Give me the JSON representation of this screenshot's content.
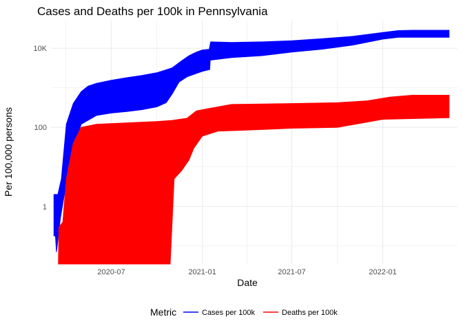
{
  "chart_data": {
    "type": "line",
    "title": "Cases and Deaths per 100k in Pennsylvania",
    "xlabel": "Date",
    "ylabel": "Per 100,000 persons",
    "x_scale": "date",
    "y_scale": "log10",
    "xlim": [
      "2020-03-01",
      "2022-06-01"
    ],
    "ylim": [
      0.035,
      50000
    ],
    "x_ticks": [
      {
        "date": "2020-07-01",
        "label": "2020-07"
      },
      {
        "date": "2021-01-01",
        "label": "2021-01"
      },
      {
        "date": "2021-07-01",
        "label": "2021-07"
      },
      {
        "date": "2022-01-01",
        "label": "2022-01"
      }
    ],
    "y_ticks": [
      {
        "value": 1,
        "label": "1"
      },
      {
        "value": 100,
        "label": "100"
      },
      {
        "value": 10000,
        "label": "10K"
      }
    ],
    "grid": true,
    "legend": {
      "title": "Metric",
      "position": "bottom"
    },
    "series": [
      {
        "name": "Cases per 100k",
        "color": "#0000ff",
        "upper": [
          {
            "x": "2020-03-07",
            "y": 2
          },
          {
            "x": "2020-03-15",
            "y": 2
          },
          {
            "x": "2020-03-22",
            "y": 5
          },
          {
            "x": "2020-04-01",
            "y": 120
          },
          {
            "x": "2020-04-15",
            "y": 400
          },
          {
            "x": "2020-05-01",
            "y": 800
          },
          {
            "x": "2020-05-15",
            "y": 1100
          },
          {
            "x": "2020-06-01",
            "y": 1300
          },
          {
            "x": "2020-07-01",
            "y": 1550
          },
          {
            "x": "2020-08-01",
            "y": 1800
          },
          {
            "x": "2020-09-01",
            "y": 2050
          },
          {
            "x": "2020-10-01",
            "y": 2400
          },
          {
            "x": "2020-11-01",
            "y": 3200
          },
          {
            "x": "2020-11-20",
            "y": 4800
          },
          {
            "x": "2020-12-05",
            "y": 6500
          },
          {
            "x": "2020-12-20",
            "y": 8000
          },
          {
            "x": "2021-01-01",
            "y": 9000
          },
          {
            "x": "2021-01-15",
            "y": 9400
          },
          {
            "x": "2021-01-18",
            "y": 14500
          },
          {
            "x": "2021-03-01",
            "y": 14000
          },
          {
            "x": "2021-05-01",
            "y": 14500
          },
          {
            "x": "2021-07-01",
            "y": 15500
          },
          {
            "x": "2021-09-01",
            "y": 17500
          },
          {
            "x": "2021-11-01",
            "y": 20000
          },
          {
            "x": "2022-01-01",
            "y": 25000
          },
          {
            "x": "2022-02-01",
            "y": 28000
          },
          {
            "x": "2022-03-01",
            "y": 28500
          },
          {
            "x": "2022-05-15",
            "y": 28500
          }
        ],
        "lower": [
          {
            "x": "2020-03-07",
            "y": 0.18
          },
          {
            "x": "2020-03-10",
            "y": 0.18
          },
          {
            "x": "2020-03-12",
            "y": 0.07
          },
          {
            "x": "2020-03-20",
            "y": 0.5
          },
          {
            "x": "2020-04-01",
            "y": 4
          },
          {
            "x": "2020-04-15",
            "y": 30
          },
          {
            "x": "2020-05-01",
            "y": 120
          },
          {
            "x": "2020-06-01",
            "y": 200
          },
          {
            "x": "2020-07-01",
            "y": 230
          },
          {
            "x": "2020-08-01",
            "y": 250
          },
          {
            "x": "2020-09-01",
            "y": 280
          },
          {
            "x": "2020-10-01",
            "y": 330
          },
          {
            "x": "2020-10-20",
            "y": 420
          },
          {
            "x": "2020-11-01",
            "y": 700
          },
          {
            "x": "2020-11-15",
            "y": 1400
          },
          {
            "x": "2020-12-01",
            "y": 1900
          },
          {
            "x": "2021-01-01",
            "y": 2600
          },
          {
            "x": "2021-01-16",
            "y": 2900
          },
          {
            "x": "2021-01-17",
            "y": 5000
          },
          {
            "x": "2021-03-01",
            "y": 5800
          },
          {
            "x": "2021-05-01",
            "y": 6500
          },
          {
            "x": "2021-07-01",
            "y": 8000
          },
          {
            "x": "2021-09-01",
            "y": 9500
          },
          {
            "x": "2021-11-01",
            "y": 12000
          },
          {
            "x": "2022-01-01",
            "y": 17000
          },
          {
            "x": "2022-02-01",
            "y": 19000
          },
          {
            "x": "2022-05-15",
            "y": 19000
          }
        ]
      },
      {
        "name": "Deaths per 100k",
        "color": "#ff0000",
        "upper": [
          {
            "x": "2020-03-16",
            "y": 0.035
          },
          {
            "x": "2020-03-17",
            "y": 0.3
          },
          {
            "x": "2020-03-25",
            "y": 0.4
          },
          {
            "x": "2020-04-01",
            "y": 5
          },
          {
            "x": "2020-04-15",
            "y": 40
          },
          {
            "x": "2020-05-01",
            "y": 100
          },
          {
            "x": "2020-06-01",
            "y": 120
          },
          {
            "x": "2020-08-01",
            "y": 130
          },
          {
            "x": "2020-10-01",
            "y": 140
          },
          {
            "x": "2020-11-01",
            "y": 150
          },
          {
            "x": "2020-12-01",
            "y": 170
          },
          {
            "x": "2020-12-20",
            "y": 260
          },
          {
            "x": "2021-01-15",
            "y": 300
          },
          {
            "x": "2021-03-01",
            "y": 380
          },
          {
            "x": "2021-07-01",
            "y": 400
          },
          {
            "x": "2021-10-01",
            "y": 420
          },
          {
            "x": "2021-12-01",
            "y": 470
          },
          {
            "x": "2022-01-15",
            "y": 580
          },
          {
            "x": "2022-03-01",
            "y": 650
          },
          {
            "x": "2022-05-15",
            "y": 650
          }
        ],
        "lower": [
          {
            "x": "2020-03-16",
            "y": 0.035
          },
          {
            "x": "2020-10-28",
            "y": 0.035
          },
          {
            "x": "2020-11-05",
            "y": 5
          },
          {
            "x": "2020-11-20",
            "y": 8
          },
          {
            "x": "2020-12-05",
            "y": 15
          },
          {
            "x": "2020-12-15",
            "y": 30
          },
          {
            "x": "2021-01-01",
            "y": 60
          },
          {
            "x": "2021-02-01",
            "y": 80
          },
          {
            "x": "2021-04-01",
            "y": 85
          },
          {
            "x": "2021-07-01",
            "y": 95
          },
          {
            "x": "2021-10-01",
            "y": 100
          },
          {
            "x": "2022-01-01",
            "y": 160
          },
          {
            "x": "2022-05-15",
            "y": 175
          }
        ]
      }
    ]
  }
}
